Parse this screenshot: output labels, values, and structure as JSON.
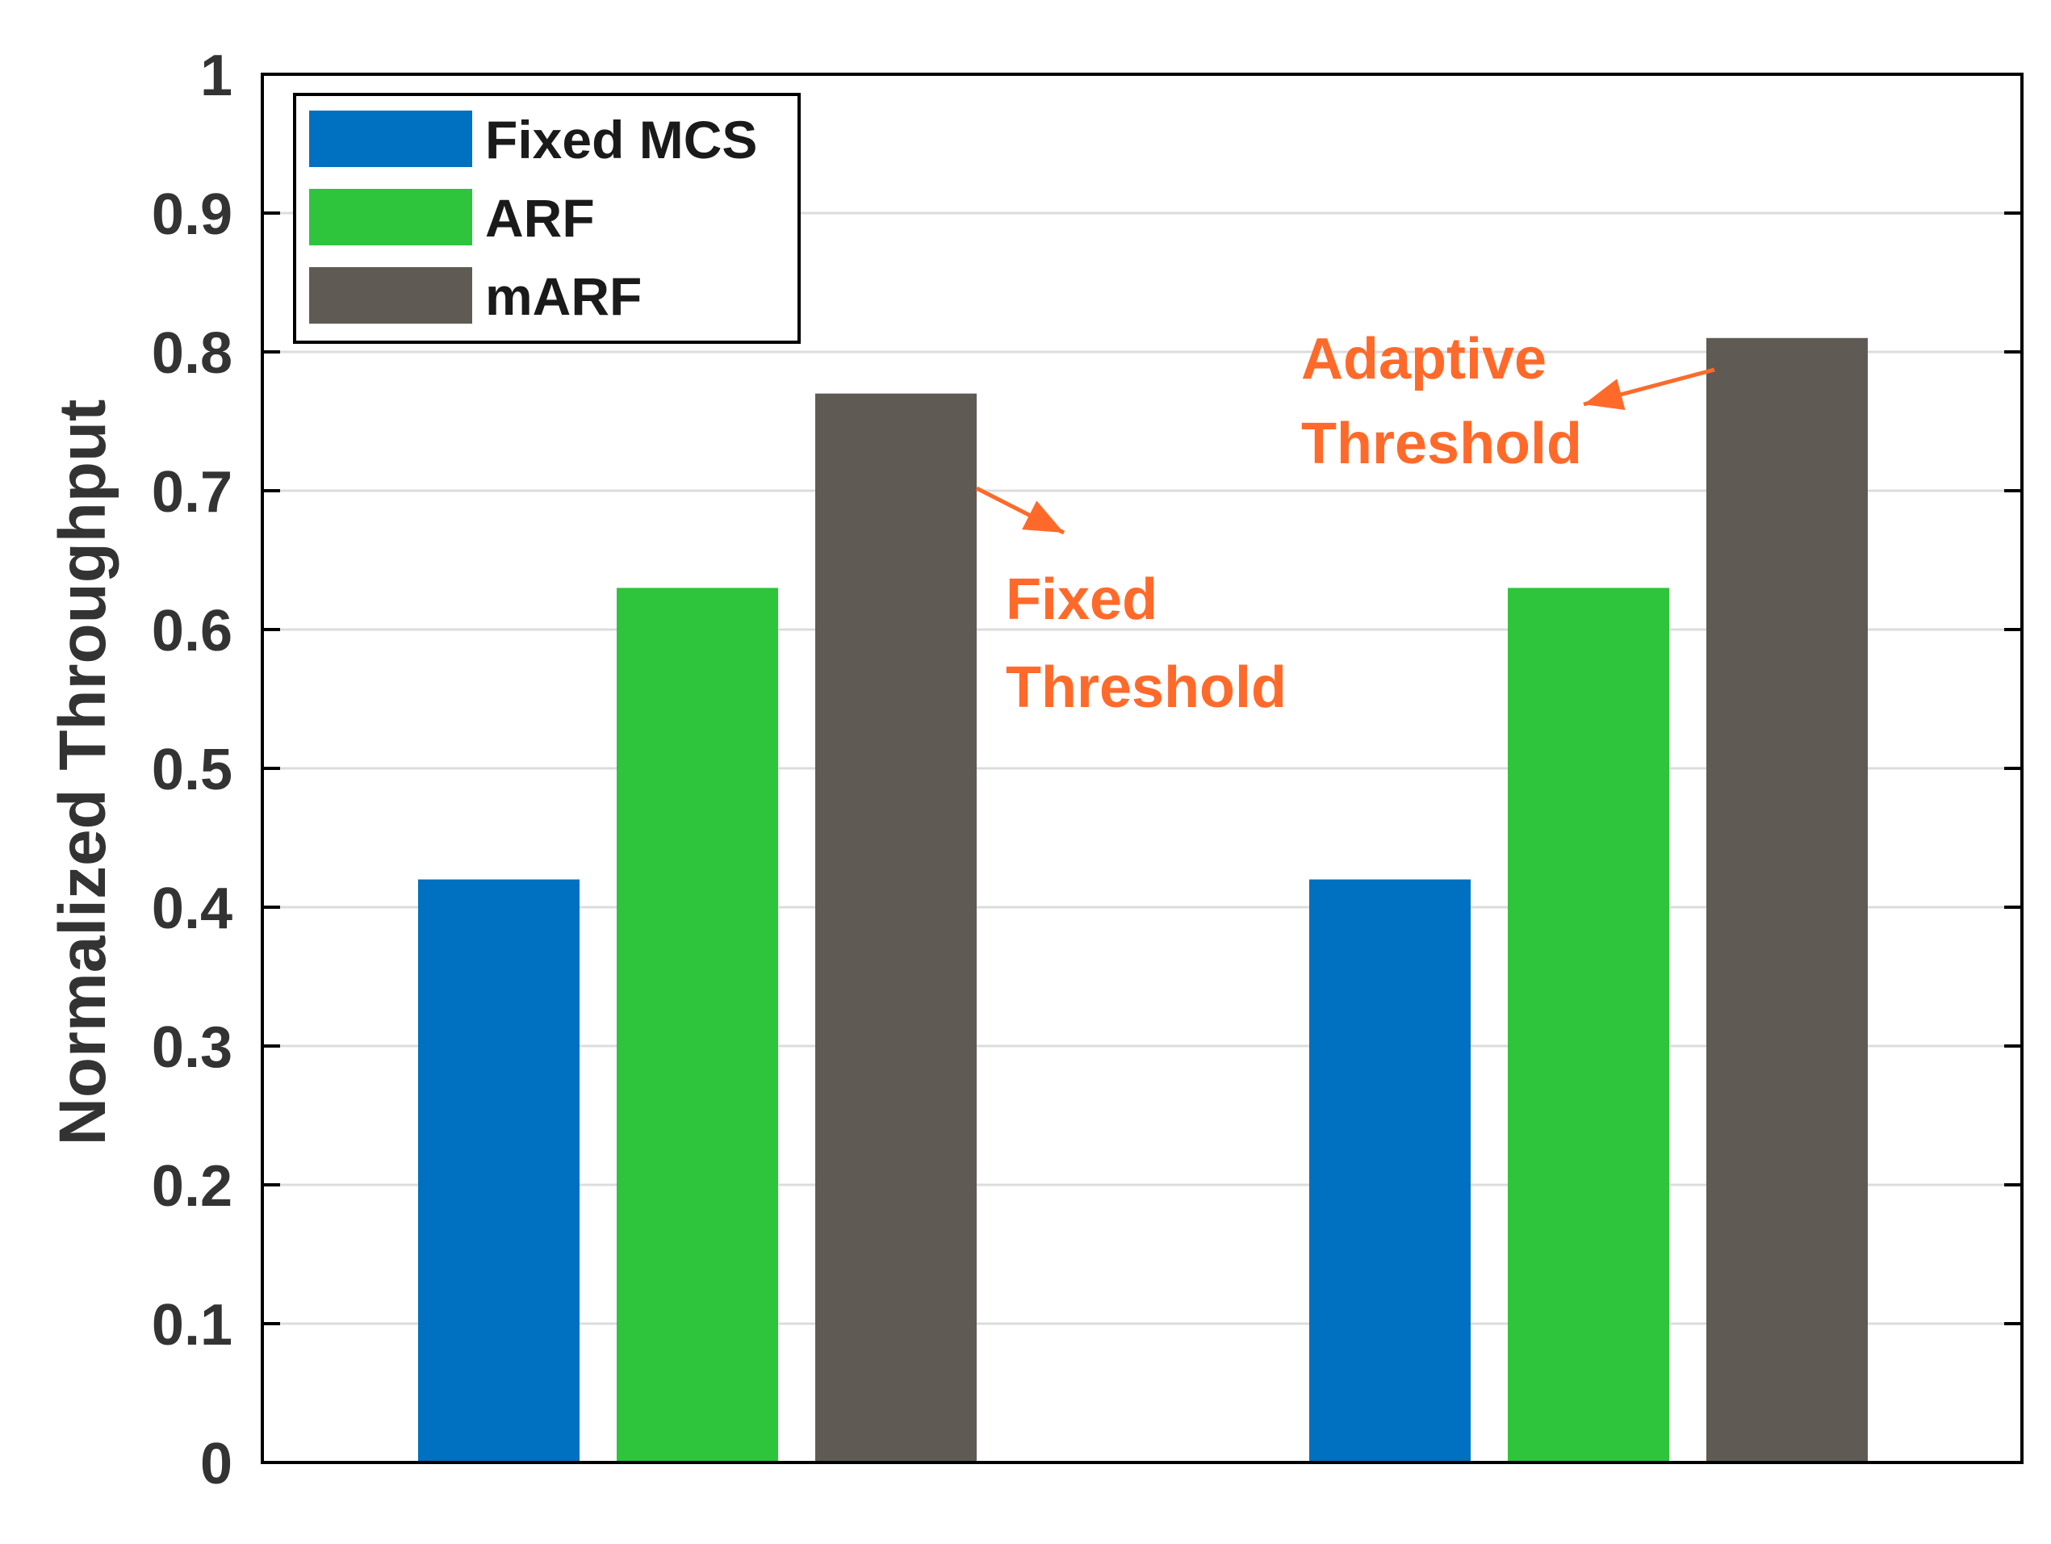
{
  "chart_data": {
    "type": "bar",
    "title": "",
    "xlabel": "",
    "ylabel": "Normalized Throughput",
    "ylim": [
      0,
      1
    ],
    "yticks": [
      "0",
      "0.1",
      "0.2",
      "0.3",
      "0.4",
      "0.5",
      "0.6",
      "0.7",
      "0.8",
      "0.9",
      "1"
    ],
    "grid": true,
    "legend_position": "top-left",
    "categories": [
      "Fixed Threshold",
      "Adaptive Threshold"
    ],
    "series": [
      {
        "name": "Fixed MCS",
        "color": "#0070c0",
        "values": [
          0.42,
          0.42
        ]
      },
      {
        "name": "ARF",
        "color": "#2ec43c",
        "values": [
          0.63,
          0.63
        ]
      },
      {
        "name": "mARF",
        "color": "#5f5b54",
        "values": [
          0.77,
          0.81
        ]
      }
    ],
    "annotations": [
      {
        "id": "fixed",
        "lines": [
          "Fixed",
          "Threshold"
        ],
        "color": "#ff6a2a"
      },
      {
        "id": "adaptive",
        "lines": [
          "Adaptive",
          "Threshold"
        ],
        "color": "#ff6a2a"
      }
    ]
  }
}
